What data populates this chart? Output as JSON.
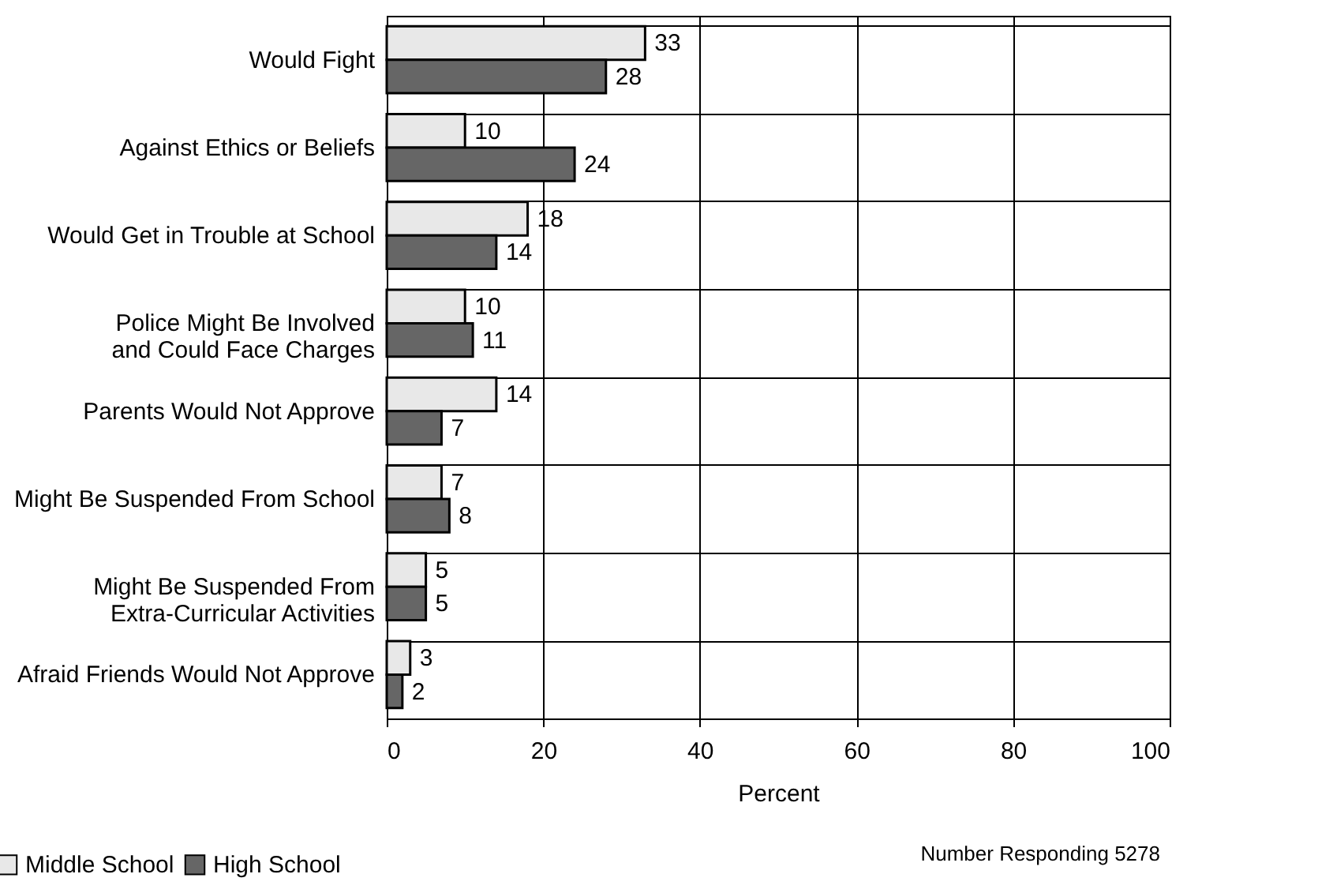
{
  "chart_data": {
    "type": "bar",
    "orientation": "horizontal",
    "xlabel": "Percent",
    "categories": [
      "Would Fight",
      "Against Ethics or Beliefs",
      "Would Get in Trouble at School",
      "Police Might Be Involved\nand Could Face Charges",
      "Parents Would Not Approve",
      "Might Be Suspended From School",
      "Might Be Suspended From\nExtra-Curricular Activities",
      "Afraid Friends Would Not Approve"
    ],
    "series": [
      {
        "name": "Middle School",
        "color": "#e8e8e8",
        "values": [
          33,
          10,
          18,
          10,
          14,
          7,
          5,
          3
        ]
      },
      {
        "name": "High School",
        "color": "#666666",
        "values": [
          28,
          24,
          14,
          11,
          7,
          8,
          5,
          2
        ]
      }
    ],
    "xlim": [
      0,
      100
    ],
    "xticks": [
      0,
      20,
      40,
      60,
      80,
      100
    ],
    "grid": true,
    "legend": "bottom left",
    "data_labels": true,
    "annotations": [
      "Number Responding 5278"
    ]
  }
}
